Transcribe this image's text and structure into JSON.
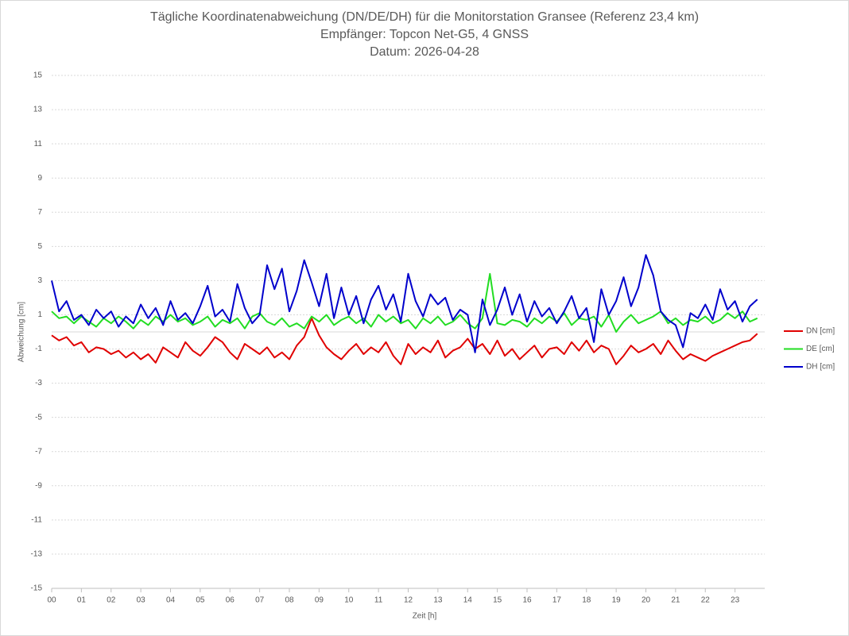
{
  "chart_data": {
    "type": "line",
    "title_lines": [
      "Tägliche Koordinatenabweichung (DN/DE/DH) für die Monitorstation Gransee (Referenz 23,4 km)",
      "Empfänger: Topcon Net-G5, 4 GNSS",
      "Datum: 2026-04-28"
    ],
    "xlabel": "Zeit [h]",
    "ylabel": "Abweichung [cm]",
    "xlim": [
      0,
      24
    ],
    "ylim": [
      -15,
      15
    ],
    "xticks": [
      {
        "value": 0,
        "label": "00"
      },
      {
        "value": 1,
        "label": "01"
      },
      {
        "value": 2,
        "label": "02"
      },
      {
        "value": 3,
        "label": "03"
      },
      {
        "value": 4,
        "label": "04"
      },
      {
        "value": 5,
        "label": "05"
      },
      {
        "value": 6,
        "label": "06"
      },
      {
        "value": 7,
        "label": "07"
      },
      {
        "value": 8,
        "label": "08"
      },
      {
        "value": 9,
        "label": "09"
      },
      10,
      11,
      12,
      13,
      14,
      15,
      16,
      17,
      18,
      19,
      20,
      21,
      22,
      23
    ],
    "yticks": [
      -15,
      -13,
      -11,
      -9,
      -7,
      -5,
      -3,
      -1,
      1,
      3,
      5,
      7,
      9,
      11,
      13,
      15
    ],
    "grid": true,
    "legend": "right",
    "x": [
      0,
      0.25,
      0.5,
      0.75,
      1,
      1.25,
      1.5,
      1.75,
      2,
      2.25,
      2.5,
      2.75,
      3,
      3.25,
      3.5,
      3.75,
      4,
      4.25,
      4.5,
      4.75,
      5,
      5.25,
      5.5,
      5.75,
      6,
      6.25,
      6.5,
      6.75,
      7,
      7.25,
      7.5,
      7.75,
      8,
      8.25,
      8.5,
      8.75,
      9,
      9.25,
      9.5,
      9.75,
      10,
      10.25,
      10.5,
      10.75,
      11,
      11.25,
      11.5,
      11.75,
      12,
      12.25,
      12.5,
      12.75,
      13,
      13.25,
      13.5,
      13.75,
      14,
      14.25,
      14.5,
      14.75,
      15,
      15.25,
      15.5,
      15.75,
      16,
      16.25,
      16.5,
      16.75,
      17,
      17.25,
      17.5,
      17.75,
      18,
      18.25,
      18.5,
      18.75,
      19,
      19.25,
      19.5,
      19.75,
      20,
      20.25,
      20.5,
      20.75,
      21,
      21.25,
      21.5,
      21.75,
      22,
      22.25,
      22.5,
      22.75,
      23,
      23.25,
      23.5,
      23.75
    ],
    "series": [
      {
        "name": "DN [cm]",
        "color": "#e00000",
        "values": [
          -0.2,
          -0.5,
          -0.3,
          -0.8,
          -0.6,
          -1.2,
          -0.9,
          -1.0,
          -1.3,
          -1.1,
          -1.5,
          -1.2,
          -1.6,
          -1.3,
          -1.8,
          -0.9,
          -1.2,
          -1.5,
          -0.6,
          -1.1,
          -1.4,
          -0.9,
          -0.3,
          -0.6,
          -1.2,
          -1.6,
          -0.7,
          -1.0,
          -1.3,
          -0.9,
          -1.5,
          -1.2,
          -1.6,
          -0.8,
          -0.3,
          0.8,
          -0.2,
          -0.9,
          -1.3,
          -1.6,
          -1.1,
          -0.7,
          -1.3,
          -0.9,
          -1.2,
          -0.6,
          -1.4,
          -1.9,
          -0.7,
          -1.3,
          -0.9,
          -1.2,
          -0.5,
          -1.5,
          -1.1,
          -0.9,
          -0.4,
          -1.0,
          -0.7,
          -1.3,
          -0.5,
          -1.4,
          -1.0,
          -1.6,
          -1.2,
          -0.8,
          -1.5,
          -1.0,
          -0.9,
          -1.3,
          -0.6,
          -1.1,
          -0.5,
          -1.2,
          -0.8,
          -1.0,
          -1.9,
          -1.4,
          -0.8,
          -1.2,
          -1.0,
          -0.7,
          -1.3,
          -0.5,
          -1.1,
          -1.6,
          -1.3,
          -1.5,
          -1.7,
          -1.4,
          -1.2,
          -1.0,
          -0.8,
          -0.6,
          -0.5,
          -0.1
        ]
      },
      {
        "name": "DE [cm]",
        "color": "#22dd22",
        "values": [
          1.2,
          0.8,
          0.9,
          0.5,
          0.9,
          0.6,
          0.3,
          0.8,
          0.5,
          0.9,
          0.6,
          0.2,
          0.7,
          0.4,
          0.9,
          0.6,
          1.0,
          0.6,
          0.8,
          0.4,
          0.6,
          0.9,
          0.3,
          0.7,
          0.5,
          0.8,
          0.2,
          0.9,
          1.1,
          0.6,
          0.4,
          0.8,
          0.3,
          0.5,
          0.2,
          0.9,
          0.6,
          1.0,
          0.4,
          0.7,
          0.9,
          0.5,
          0.8,
          0.3,
          1.0,
          0.6,
          0.9,
          0.5,
          0.7,
          0.2,
          0.8,
          0.5,
          0.9,
          0.4,
          0.6,
          1.0,
          0.5,
          0.2,
          0.8,
          3.4,
          0.5,
          0.4,
          0.7,
          0.6,
          0.3,
          0.8,
          0.5,
          0.9,
          0.6,
          1.1,
          0.4,
          0.8,
          0.7,
          0.9,
          0.3,
          1.0,
          0.0,
          0.6,
          1.0,
          0.5,
          0.7,
          0.9,
          1.2,
          0.5,
          0.8,
          0.4,
          0.7,
          0.6,
          0.9,
          0.5,
          0.7,
          1.1,
          0.8,
          1.2,
          0.6,
          0.8
        ]
      },
      {
        "name": "DH [cm]",
        "color": "#0000cc",
        "values": [
          3.0,
          1.2,
          1.8,
          0.7,
          1.0,
          0.4,
          1.3,
          0.8,
          1.2,
          0.3,
          0.9,
          0.5,
          1.6,
          0.8,
          1.4,
          0.4,
          1.8,
          0.7,
          1.1,
          0.5,
          1.5,
          2.7,
          0.9,
          1.3,
          0.6,
          2.8,
          1.4,
          0.5,
          1.0,
          3.9,
          2.5,
          3.7,
          1.2,
          2.4,
          4.2,
          2.9,
          1.5,
          3.4,
          0.8,
          2.6,
          1.0,
          2.1,
          0.5,
          1.9,
          2.7,
          1.3,
          2.2,
          0.6,
          3.4,
          1.8,
          0.9,
          2.2,
          1.6,
          2.0,
          0.7,
          1.3,
          1.0,
          -1.2,
          1.9,
          0.4,
          1.3,
          2.6,
          1.0,
          2.2,
          0.6,
          1.8,
          0.9,
          1.4,
          0.5,
          1.2,
          2.1,
          0.8,
          1.4,
          -0.6,
          2.5,
          1.0,
          1.8,
          3.2,
          1.5,
          2.6,
          4.5,
          3.3,
          1.2,
          0.7,
          0.4,
          -0.9,
          1.1,
          0.8,
          1.6,
          0.7,
          2.5,
          1.3,
          1.8,
          0.6,
          1.5,
          1.9
        ]
      }
    ]
  }
}
